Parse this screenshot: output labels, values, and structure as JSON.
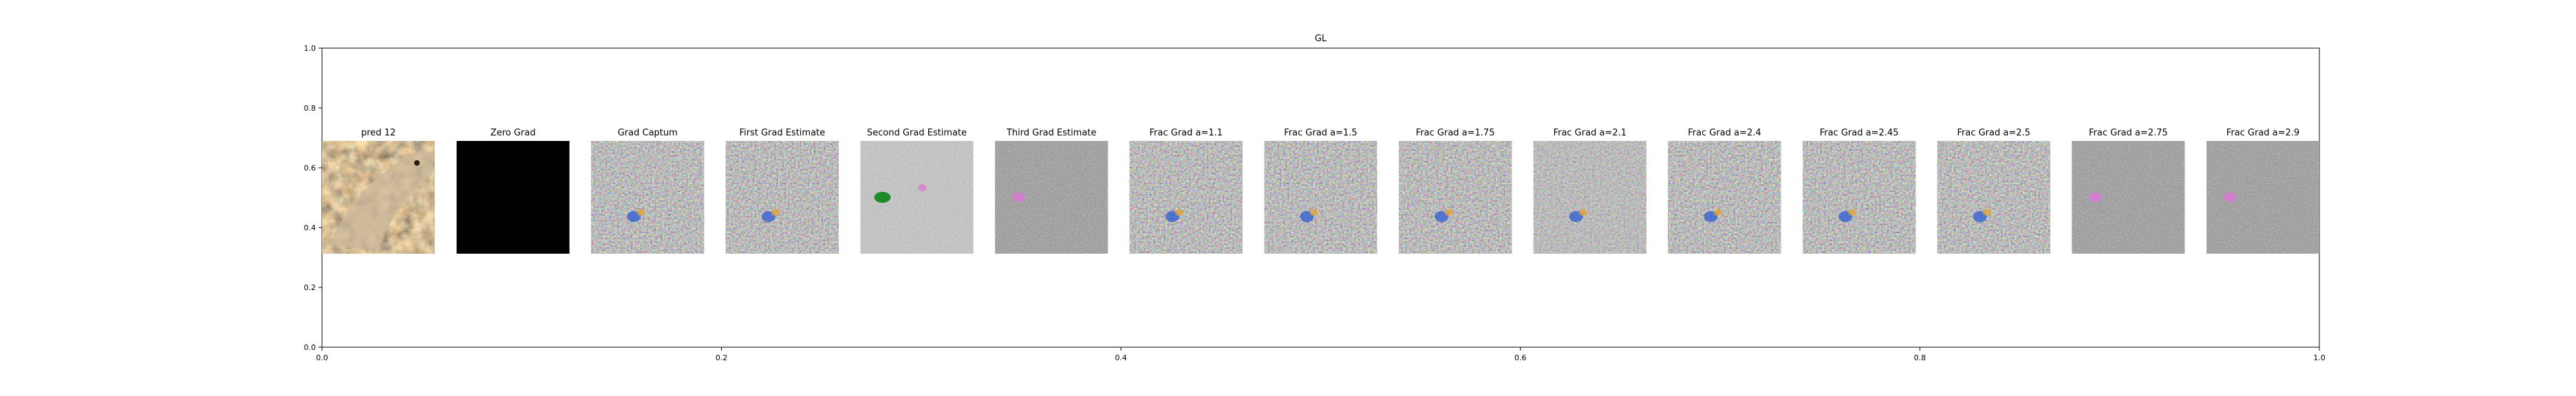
{
  "chart_data": {
    "type": "image-grid",
    "title": "GL",
    "xlim": [
      0,
      1
    ],
    "ylim": [
      0,
      1
    ],
    "xticks": [
      "0.0",
      "0.2",
      "0.4",
      "0.6",
      "0.8",
      "1.0"
    ],
    "yticks": [
      "0.0",
      "0.2",
      "0.4",
      "0.6",
      "0.8",
      "1.0"
    ],
    "grid": false,
    "panels": [
      {
        "label": "pred 12",
        "kind": "lizard-photo"
      },
      {
        "label": "Zero Grad",
        "kind": "black"
      },
      {
        "label": "Grad Captum",
        "kind": "noise-color"
      },
      {
        "label": "First Grad Estimate",
        "kind": "noise-color"
      },
      {
        "label": "Second Grad Estimate",
        "kind": "noise-light-green-spot"
      },
      {
        "label": "Third Grad Estimate",
        "kind": "noise-gray-pink-spot"
      },
      {
        "label": "Frac Grad a=1.1",
        "kind": "noise-color"
      },
      {
        "label": "Frac Grad a=1.5",
        "kind": "noise-color"
      },
      {
        "label": "Frac Grad a=1.75",
        "kind": "noise-color"
      },
      {
        "label": "Frac Grad a=2.1",
        "kind": "noise-color-light"
      },
      {
        "label": "Frac Grad a=2.4",
        "kind": "noise-color"
      },
      {
        "label": "Frac Grad a=2.45",
        "kind": "noise-color"
      },
      {
        "label": "Frac Grad a=2.5",
        "kind": "noise-color"
      },
      {
        "label": "Frac Grad a=2.75",
        "kind": "noise-gray-pink-spot"
      },
      {
        "label": "Frac Grad a=2.9",
        "kind": "noise-gray-pink-spot"
      }
    ]
  },
  "colors": {
    "axis": "#000000",
    "background": "#ffffff",
    "panel_black": "#000000",
    "noise_base": "#8c8c8c",
    "noise_light": "#b4b4b4"
  }
}
